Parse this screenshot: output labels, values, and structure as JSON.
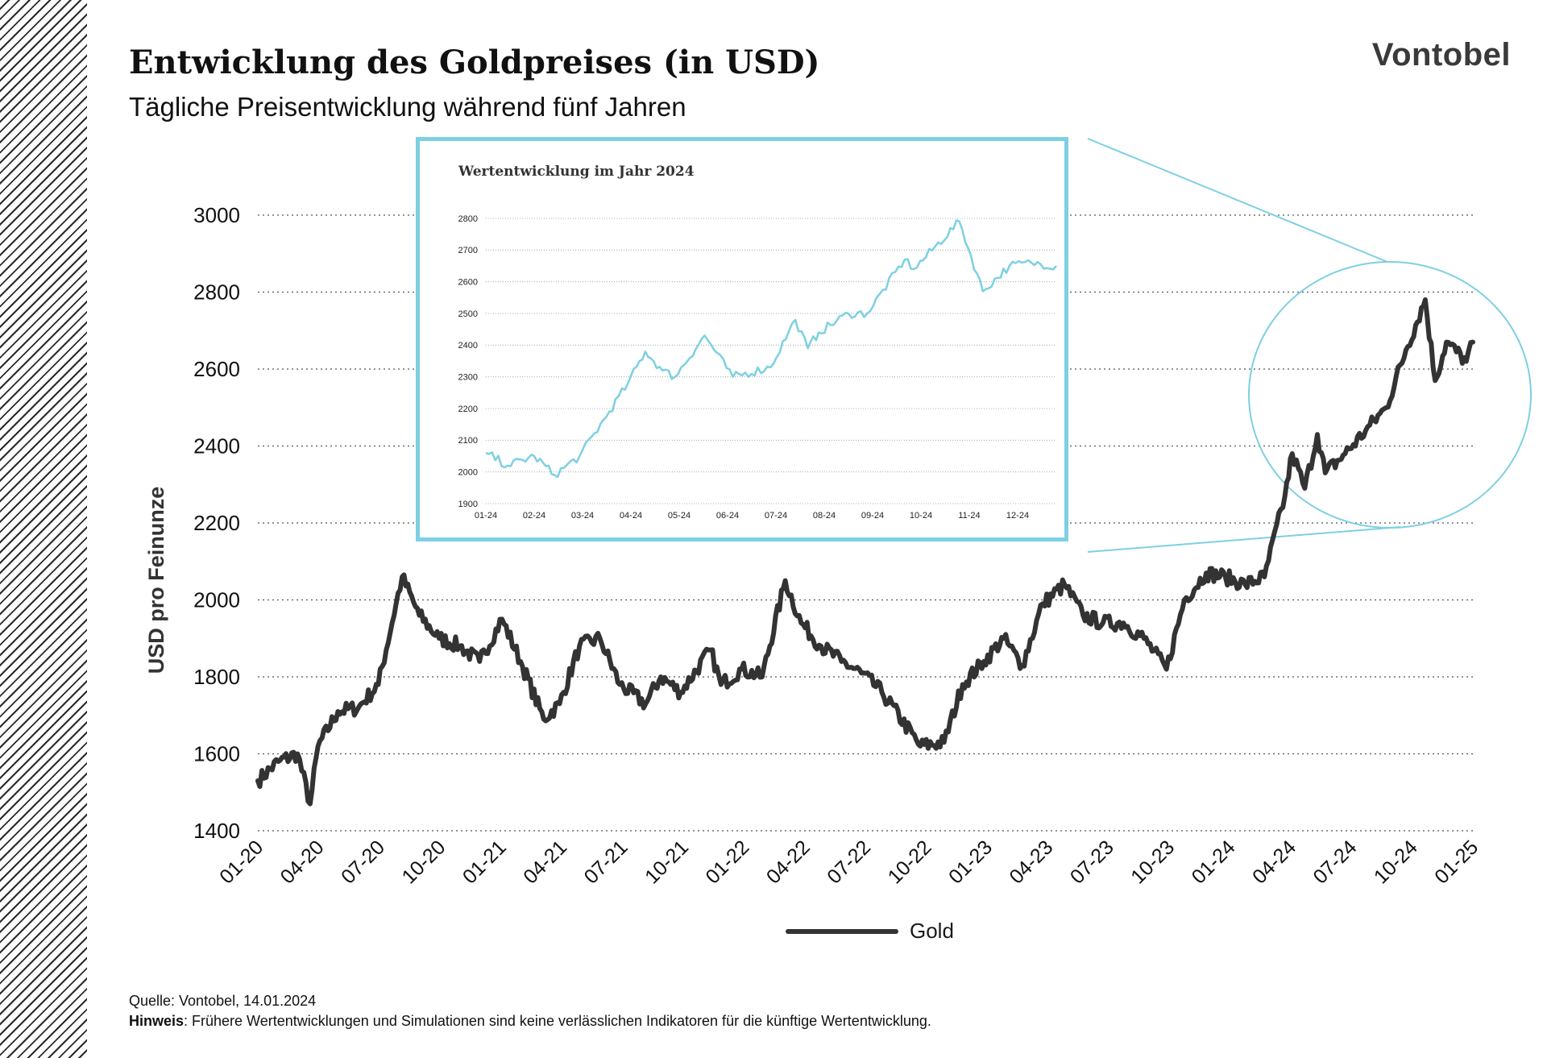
{
  "header": {
    "title": "Entwicklung des Goldpreises (in USD)",
    "subtitle": "Tägliche Preisentwicklung während fünf Jahren",
    "brand": "Vontobel"
  },
  "footer": {
    "source": "Quelle:  Vontobel,  14.01.2024",
    "note_label": "Hinweis",
    "note_text": ": Frühere Wertentwicklungen und Simulationen sind keine verlässlichen Indikatoren für die künftige Wertentwicklung."
  },
  "colors": {
    "series": "#333333",
    "accent": "#7dd0e2",
    "grid": "#888888"
  },
  "chart_data": [
    {
      "type": "line",
      "title": "",
      "ylabel": "USD pro Feinunze",
      "ylim": [
        1400,
        3000
      ],
      "yticks": [
        1400,
        1600,
        1800,
        2000,
        2200,
        2400,
        2600,
        2800,
        3000
      ],
      "xtick_labels": [
        "01-20",
        "04-20",
        "07-20",
        "10-20",
        "01-21",
        "04-21",
        "07-21",
        "10-21",
        "01-22",
        "04-22",
        "07-22",
        "10-22",
        "01-23",
        "04-23",
        "07-23",
        "10-23",
        "01-24",
        "04-24",
        "07-24",
        "10-24",
        "01-25"
      ],
      "grid": "horizontal dotted",
      "legend": "bottom-center",
      "series": [
        {
          "name": "Gold",
          "x": [
            "2020-01-01",
            "2020-02-01",
            "2020-03-01",
            "2020-03-20",
            "2020-04-01",
            "2020-05-01",
            "2020-06-01",
            "2020-07-01",
            "2020-08-06",
            "2020-09-01",
            "2020-10-01",
            "2020-11-01",
            "2020-12-01",
            "2021-01-04",
            "2021-02-01",
            "2021-03-08",
            "2021-04-01",
            "2021-05-01",
            "2021-06-01",
            "2021-07-01",
            "2021-08-09",
            "2021-09-01",
            "2021-10-01",
            "2021-11-15",
            "2021-12-01",
            "2022-01-01",
            "2022-02-01",
            "2022-03-08",
            "2022-04-01",
            "2022-05-01",
            "2022-06-01",
            "2022-07-01",
            "2022-08-01",
            "2022-09-28",
            "2022-11-03",
            "2022-12-01",
            "2023-01-02",
            "2023-02-01",
            "2023-03-01",
            "2023-04-01",
            "2023-05-04",
            "2023-06-01",
            "2023-07-01",
            "2023-08-01",
            "2023-09-01",
            "2023-10-05",
            "2023-11-01",
            "2023-12-04",
            "2024-01-02",
            "2024-02-01",
            "2024-03-01",
            "2024-04-01",
            "2024-04-12",
            "2024-05-01",
            "2024-05-20",
            "2024-06-01",
            "2024-07-01",
            "2024-08-01",
            "2024-09-01",
            "2024-10-01",
            "2024-10-30",
            "2024-11-14",
            "2024-12-01",
            "2024-12-31",
            "2025-01-10"
          ],
          "values": [
            1530,
            1580,
            1600,
            1470,
            1620,
            1710,
            1720,
            1780,
            2060,
            1960,
            1900,
            1880,
            1840,
            1950,
            1840,
            1690,
            1730,
            1880,
            1900,
            1780,
            1730,
            1800,
            1760,
            1870,
            1780,
            1820,
            1800,
            2050,
            1940,
            1880,
            1840,
            1810,
            1760,
            1620,
            1630,
            1780,
            1840,
            1900,
            1830,
            1990,
            2040,
            1960,
            1940,
            1940,
            1900,
            1820,
            2000,
            2070,
            2060,
            2040,
            2060,
            2270,
            2380,
            2290,
            2430,
            2330,
            2380,
            2440,
            2500,
            2650,
            2780,
            2570,
            2670,
            2620,
            2670
          ]
        }
      ]
    },
    {
      "type": "line",
      "title": "Wertentwicklung im Jahr 2024",
      "ylim": [
        1900,
        2800
      ],
      "yticks": [
        1900,
        2000,
        2100,
        2200,
        2300,
        2400,
        2500,
        2600,
        2700,
        2800
      ],
      "xtick_labels": [
        "01-24",
        "02-24",
        "03-24",
        "04-24",
        "05-24",
        "06-24",
        "07-24",
        "08-24",
        "09-24",
        "10-24",
        "11-24",
        "12-24"
      ],
      "series": [
        {
          "name": "",
          "x": [
            "2024-01-01",
            "2024-01-15",
            "2024-02-01",
            "2024-02-14",
            "2024-03-01",
            "2024-03-20",
            "2024-04-01",
            "2024-04-12",
            "2024-04-23",
            "2024-05-01",
            "2024-05-20",
            "2024-06-07",
            "2024-07-01",
            "2024-07-17",
            "2024-07-25",
            "2024-08-01",
            "2024-08-20",
            "2024-09-01",
            "2024-09-25",
            "2024-10-01",
            "2024-10-30",
            "2024-11-14",
            "2024-12-01",
            "2024-12-15",
            "2024-12-31"
          ],
          "values": [
            2060,
            2020,
            2050,
            1990,
            2050,
            2190,
            2280,
            2380,
            2320,
            2300,
            2430,
            2300,
            2330,
            2480,
            2390,
            2440,
            2500,
            2500,
            2670,
            2640,
            2790,
            2570,
            2650,
            2660,
            2650
          ]
        }
      ]
    }
  ]
}
